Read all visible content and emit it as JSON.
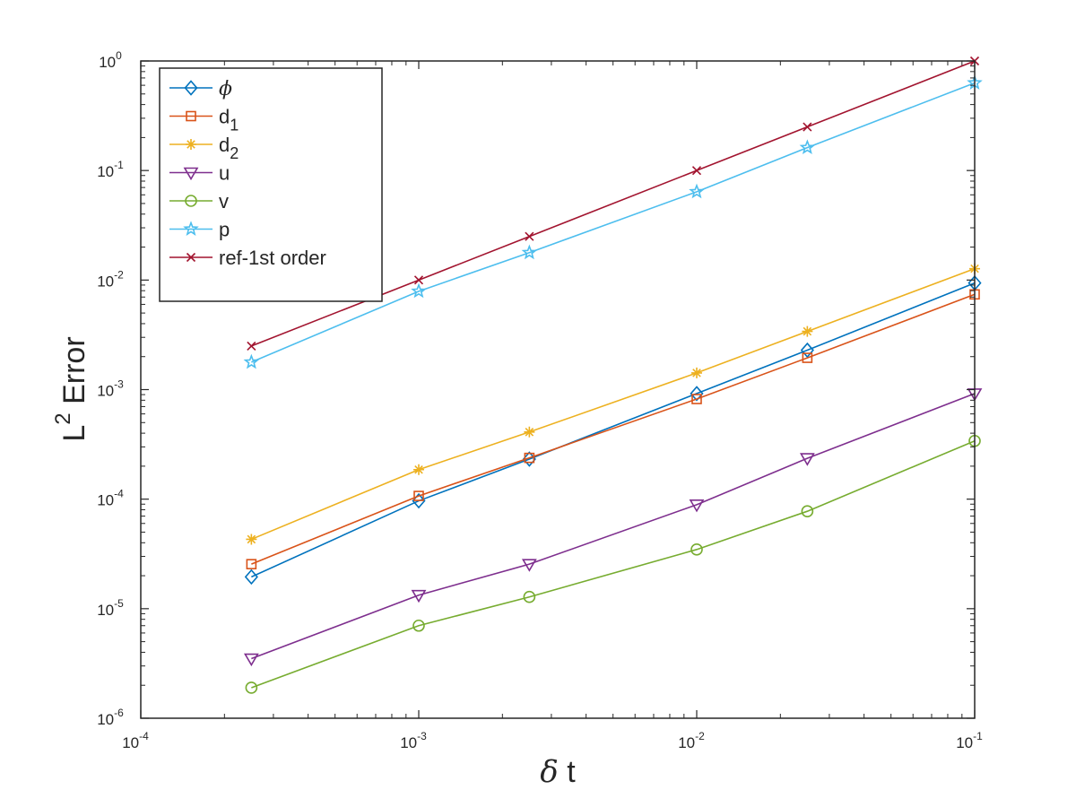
{
  "chart_data": {
    "type": "line",
    "xscale": "log",
    "yscale": "log",
    "xlim": [
      0.0001,
      0.1
    ],
    "ylim": [
      1e-06,
      1
    ],
    "grid": false,
    "legend_placement": "top-left",
    "xlabel": {
      "main": "δ",
      "rest": " t"
    },
    "ylabel": {
      "main": "L",
      "sup": "2",
      "rest": " Error"
    },
    "x_ticks": [
      {
        "base": "10",
        "exp": "-4",
        "value": 0.0001
      },
      {
        "base": "10",
        "exp": "-3",
        "value": 0.001
      },
      {
        "base": "10",
        "exp": "-2",
        "value": 0.01
      },
      {
        "base": "10",
        "exp": "-1",
        "value": 0.1
      }
    ],
    "y_ticks": [
      {
        "base": "10",
        "exp": "-6",
        "value": 1e-06
      },
      {
        "base": "10",
        "exp": "-5",
        "value": 1e-05
      },
      {
        "base": "10",
        "exp": "-4",
        "value": 0.0001
      },
      {
        "base": "10",
        "exp": "-3",
        "value": 0.001
      },
      {
        "base": "10",
        "exp": "-2",
        "value": 0.01
      },
      {
        "base": "10",
        "exp": "-1",
        "value": 0.1
      },
      {
        "base": "10",
        "exp": "0",
        "value": 1
      }
    ],
    "x": [
      0.00025,
      0.001,
      0.0025,
      0.01,
      0.025,
      0.1
    ],
    "series": [
      {
        "name": "ϕ",
        "name_parts": {
          "main": "ϕ",
          "sub": "",
          "italic": true
        },
        "color": "#0072BD",
        "marker": "diamond",
        "values": [
          1.95e-05,
          9.65e-05,
          0.000232,
          0.00092,
          0.00229,
          0.0094
        ]
      },
      {
        "name": "d1",
        "name_parts": {
          "main": "d",
          "sub": "1",
          "italic": false
        },
        "color": "#D95319",
        "marker": "square",
        "values": [
          2.55e-05,
          0.000107,
          0.000238,
          0.00082,
          0.00195,
          0.0074
        ]
      },
      {
        "name": "d2",
        "name_parts": {
          "main": "d",
          "sub": "2",
          "italic": false
        },
        "color": "#EDB120",
        "marker": "asterisk",
        "values": [
          4.3e-05,
          0.000186,
          0.00041,
          0.00142,
          0.0034,
          0.0127
        ]
      },
      {
        "name": "u",
        "name_parts": {
          "main": "u",
          "sub": "",
          "italic": false
        },
        "color": "#7E2F8E",
        "marker": "triangle-down",
        "values": [
          3.5e-06,
          1.33e-05,
          2.55e-05,
          8.9e-05,
          0.000236,
          0.00092
        ]
      },
      {
        "name": "v",
        "name_parts": {
          "main": "v",
          "sub": "",
          "italic": false
        },
        "color": "#77AC30",
        "marker": "circle",
        "values": [
          1.9e-06,
          7e-06,
          1.28e-05,
          3.47e-05,
          7.75e-05,
          0.00034
        ]
      },
      {
        "name": "p",
        "name_parts": {
          "main": "p",
          "sub": "",
          "italic": false
        },
        "color": "#4DBEEE",
        "marker": "star",
        "values": [
          0.00178,
          0.0079,
          0.0178,
          0.064,
          0.162,
          0.63
        ]
      },
      {
        "name": "ref-1st order",
        "name_parts": {
          "main": "ref-1st order",
          "sub": "",
          "italic": false
        },
        "color": "#A2142F",
        "marker": "x",
        "values": [
          0.0025,
          0.01,
          0.025,
          0.1,
          0.25,
          1
        ]
      }
    ]
  }
}
